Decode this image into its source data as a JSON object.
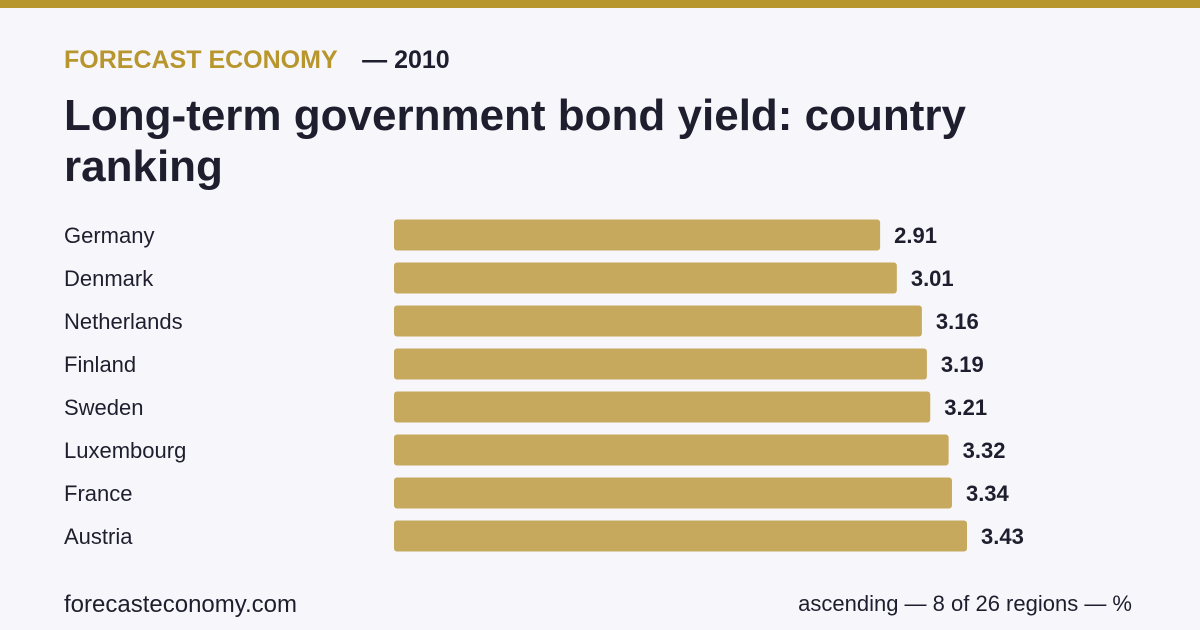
{
  "header": {
    "brand": "FORECAST ECONOMY",
    "year_label": "— 2010",
    "title": "Long-term government bond yield: country ranking"
  },
  "footer": {
    "site": "forecasteconomy.com",
    "note": "ascending — 8 of 26 regions — %"
  },
  "colors": {
    "accent": "#b8962e",
    "bar": "#c6a95c",
    "text": "#1e1e2e",
    "background": "#f7f7fb"
  },
  "chart_data": {
    "type": "bar",
    "orientation": "horizontal",
    "categories": [
      "Germany",
      "Denmark",
      "Netherlands",
      "Finland",
      "Sweden",
      "Luxembourg",
      "France",
      "Austria"
    ],
    "values": [
      2.91,
      3.01,
      3.16,
      3.19,
      3.21,
      3.32,
      3.34,
      3.43
    ],
    "value_labels": [
      "2.91",
      "3.01",
      "3.16",
      "3.19",
      "3.21",
      "3.32",
      "3.34",
      "3.43"
    ],
    "title": "Long-term government bond yield: country ranking",
    "xlabel": "",
    "ylabel": "",
    "xlim": [
      0,
      3.43
    ],
    "grid": false,
    "legend": "none"
  }
}
